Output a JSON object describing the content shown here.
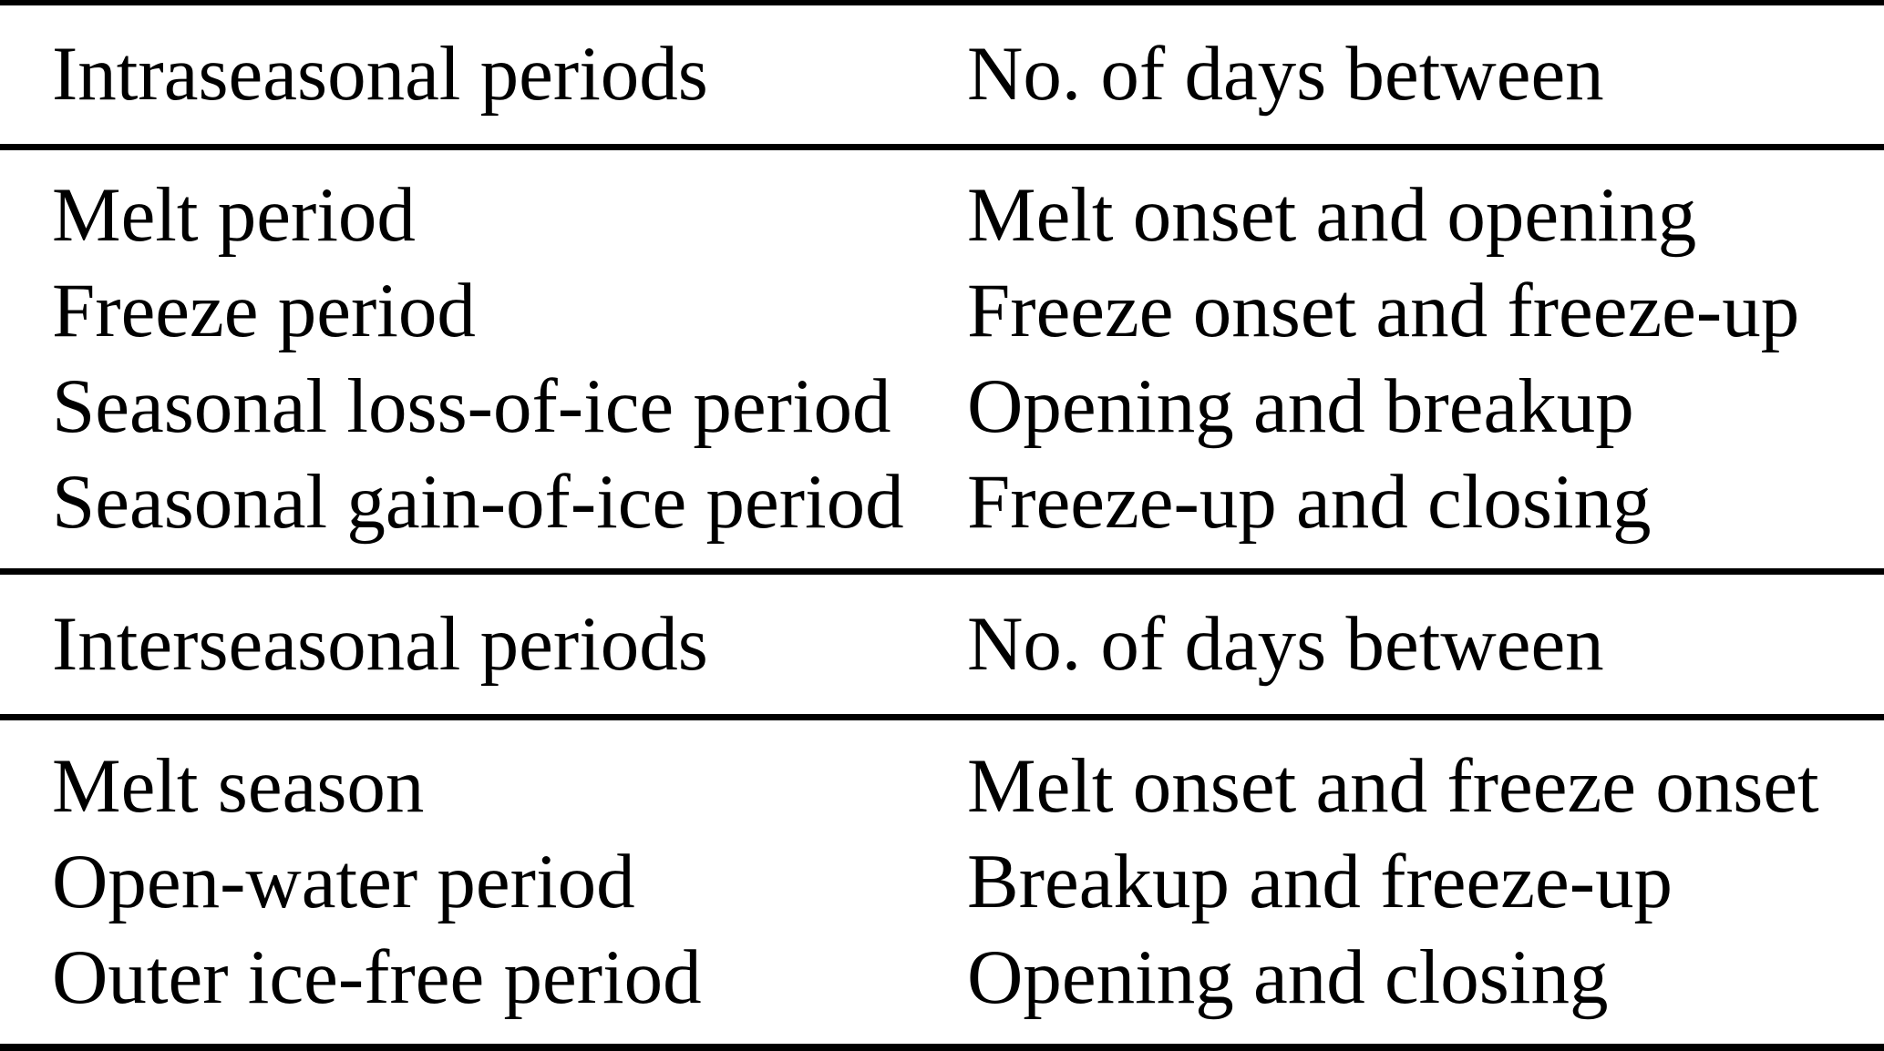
{
  "table": {
    "description": "Definitions of sea-ice intraseasonal and interseasonal periods",
    "colors": {
      "text": "#000000",
      "background": "#ffffff",
      "rule": "#000000"
    },
    "sections": [
      {
        "header": {
          "col1": "Intraseasonal periods",
          "col2": "No. of days between"
        },
        "rows": [
          {
            "col1": "Melt period",
            "col2": "Melt onset and opening"
          },
          {
            "col1": "Freeze period",
            "col2": "Freeze onset and freeze-up"
          },
          {
            "col1": "Seasonal loss-of-ice period",
            "col2": "Opening and breakup"
          },
          {
            "col1": "Seasonal gain-of-ice period",
            "col2": "Freeze-up and closing"
          }
        ]
      },
      {
        "header": {
          "col1": "Interseasonal periods",
          "col2": "No. of days between"
        },
        "rows": [
          {
            "col1": "Melt season",
            "col2": "Melt onset and freeze onset"
          },
          {
            "col1": "Open-water period",
            "col2": "Breakup and freeze-up"
          },
          {
            "col1": "Outer ice-free period",
            "col2": "Opening and closing"
          }
        ]
      }
    ]
  }
}
